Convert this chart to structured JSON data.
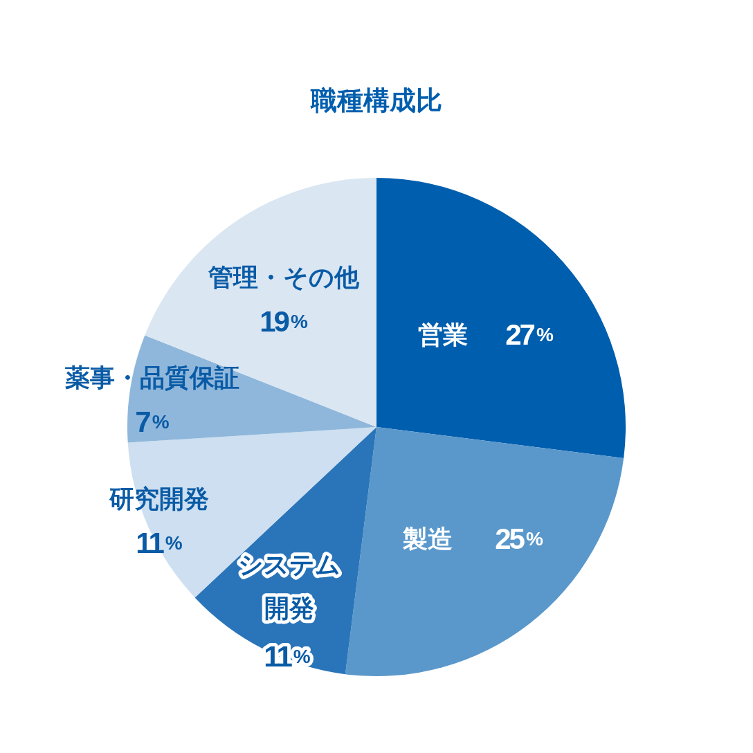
{
  "chart_data": {
    "type": "pie",
    "title": "職種構成比",
    "categories": [
      "営業",
      "製造",
      "システム開発",
      "研究開発",
      "薬事・品質保証",
      "管理・その他"
    ],
    "values": [
      27,
      25,
      11,
      11,
      7,
      19
    ],
    "colors": [
      "#005eae",
      "#5a98cb",
      "#2a75b9",
      "#cddff0",
      "#8fb7db",
      "#dae6f2"
    ],
    "value_labels": [
      "27%",
      "25%",
      "11%",
      "11%",
      "7%",
      "19%"
    ],
    "legend": false
  }
}
